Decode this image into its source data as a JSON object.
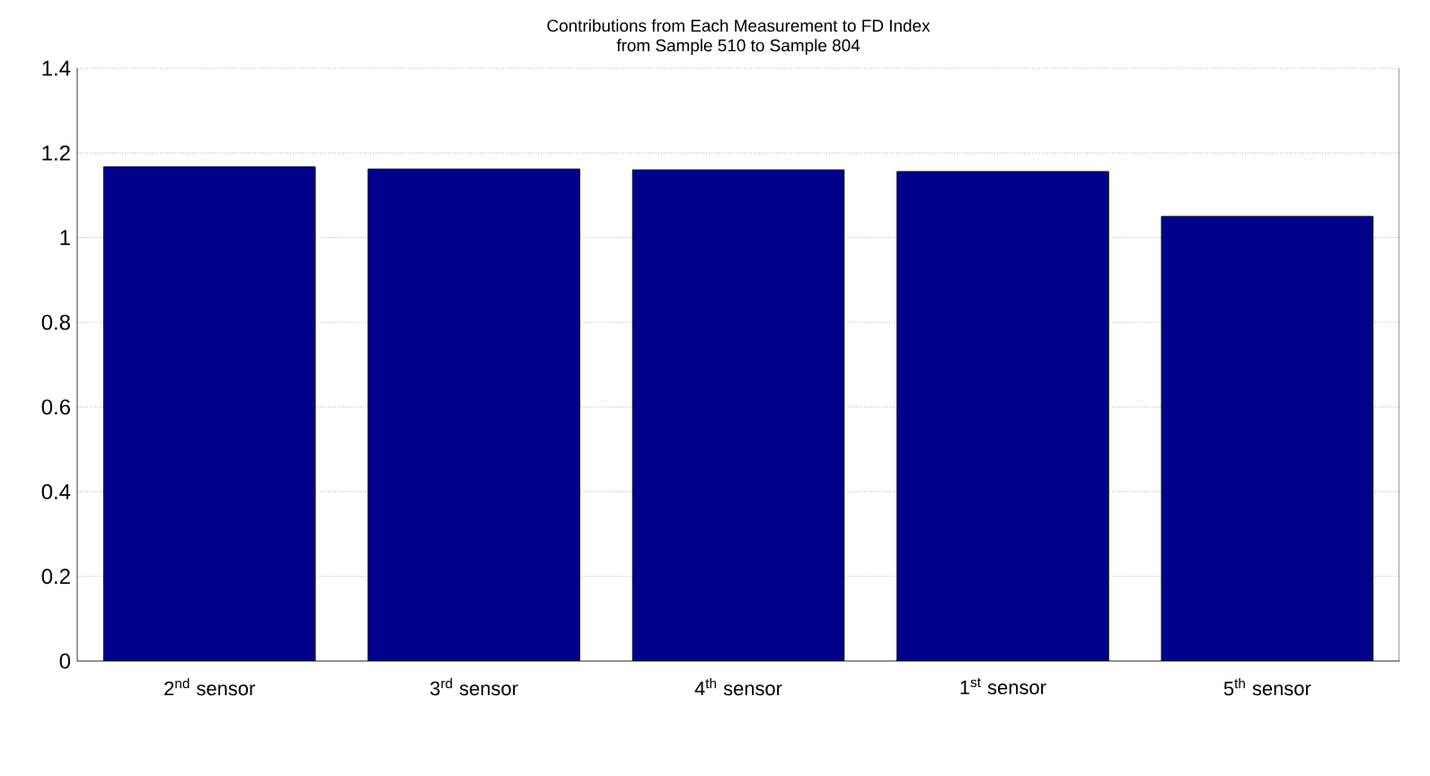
{
  "chart_data": {
    "type": "bar",
    "title": "Contributions from Each Measurement to FD Index\nfrom Sample 510 to Sample 804",
    "categories": [
      "2$^{nd}$ sensor",
      "3$^{rd}$ sensor",
      "4$^{th}$ sensor",
      "1$^{st}$ sensor",
      "5$^{th}$ sensor"
    ],
    "values": [
      1.167,
      1.162,
      1.16,
      1.156,
      1.05
    ],
    "color": "#00008b",
    "ylim": [
      0,
      1.4
    ],
    "yticks": [
      0,
      0.2,
      0.4,
      0.6,
      0.8,
      1,
      1.2,
      1.4
    ],
    "grid": "y"
  }
}
